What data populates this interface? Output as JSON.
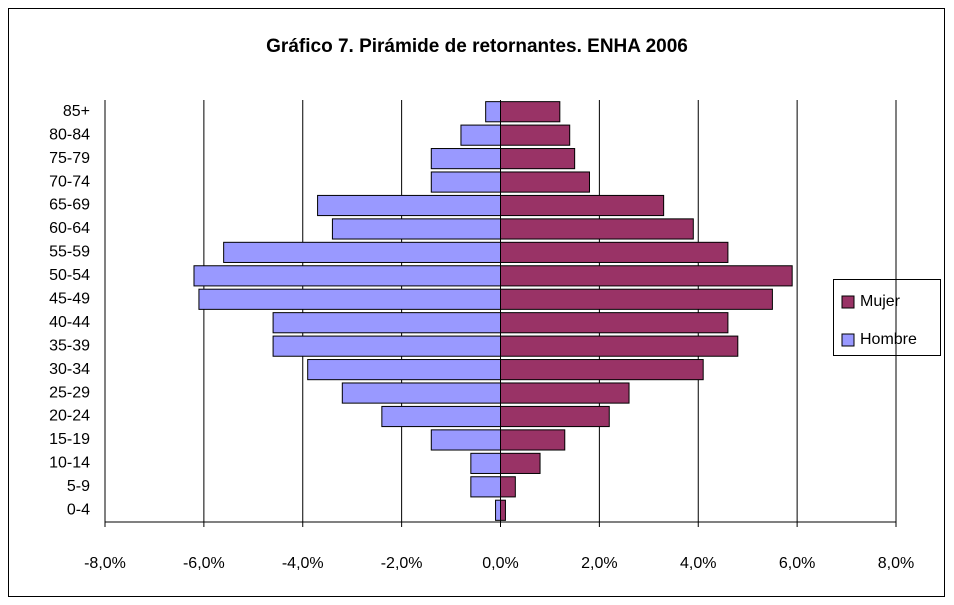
{
  "chart_data": {
    "type": "pyramid",
    "title": "Gráfico 7. Pirámide de retornantes. ENHA 2006",
    "categories": [
      "0-4",
      "5-9",
      "10-14",
      "15-19",
      "20-24",
      "25-29",
      "30-34",
      "35-39",
      "40-44",
      "45-49",
      "50-54",
      "55-59",
      "60-64",
      "65-69",
      "70-74",
      "75-79",
      "80-84",
      "85+"
    ],
    "series": [
      {
        "name": "Mujer",
        "color": "#993366",
        "values": [
          0.1,
          0.3,
          0.8,
          1.3,
          2.2,
          2.6,
          4.1,
          4.8,
          4.6,
          5.5,
          5.9,
          4.6,
          3.9,
          3.3,
          1.8,
          1.5,
          1.4,
          1.2
        ]
      },
      {
        "name": "Hombre",
        "color": "#9999ff",
        "values": [
          -0.1,
          -0.6,
          -0.6,
          -1.4,
          -2.4,
          -3.2,
          -3.9,
          -4.6,
          -4.6,
          -6.1,
          -6.2,
          -5.6,
          -3.4,
          -3.7,
          -1.4,
          -1.4,
          -0.8,
          -0.3
        ]
      }
    ],
    "xlim": [
      -8,
      8
    ],
    "xticks": [
      {
        "value": -8,
        "label": "-8,0%"
      },
      {
        "value": -6,
        "label": "-6,0%"
      },
      {
        "value": -4,
        "label": "-4,0%"
      },
      {
        "value": -2,
        "label": "-2,0%"
      },
      {
        "value": 0,
        "label": "0,0%"
      },
      {
        "value": 2,
        "label": "2,0%"
      },
      {
        "value": 4,
        "label": "4,0%"
      },
      {
        "value": 6,
        "label": "6,0%"
      },
      {
        "value": 8,
        "label": "8,0%"
      }
    ],
    "grid": true,
    "legend": "right"
  }
}
